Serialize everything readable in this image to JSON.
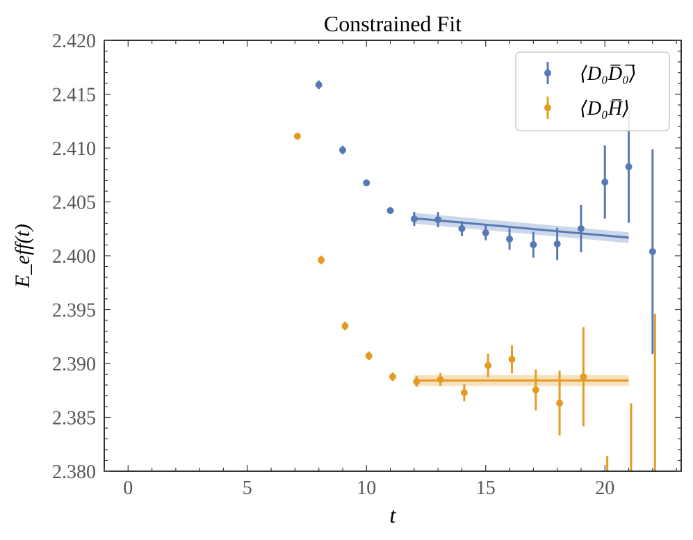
{
  "chart_data": {
    "type": "scatter",
    "title": "Constrained Fit",
    "xlabel": "t",
    "ylabel": "E_eff(t)",
    "xlim": [
      -1,
      23.2
    ],
    "ylim": [
      2.38,
      2.42
    ],
    "xticks": [
      0,
      5,
      10,
      15,
      20
    ],
    "yticks": [
      2.38,
      2.385,
      2.39,
      2.395,
      2.4,
      2.405,
      2.41,
      2.415,
      2.42
    ],
    "ytick_labels": [
      "2.380",
      "2.385",
      "2.390",
      "2.395",
      "2.400",
      "2.405",
      "2.410",
      "2.415",
      "2.420"
    ],
    "grid": false,
    "legend_position": "top-right",
    "series": [
      {
        "name": "⟨D₀D̅₀̅⟩",
        "color": "#5779b5",
        "x": [
          8,
          9,
          10,
          11,
          12,
          13,
          14,
          15,
          16,
          17,
          18,
          19,
          20,
          21,
          22
        ],
        "y": [
          2.41587,
          2.40981,
          2.40677,
          2.40419,
          2.40342,
          2.40335,
          2.40252,
          2.40213,
          2.40155,
          2.40103,
          2.4011,
          2.40252,
          2.40684,
          2.40826,
          2.40039
        ],
        "yerr": [
          0.0004,
          0.0004,
          0.0003,
          0.0003,
          0.00065,
          0.0007,
          0.0007,
          0.0007,
          0.001,
          0.0012,
          0.0015,
          0.0022,
          0.0034,
          0.0052,
          0.0095
        ],
        "fit": {
          "x": [
            12,
            21
          ],
          "y": [
            2.40348,
            2.40168
          ],
          "band": 0.0005
        }
      },
      {
        "name": "⟨D₀H̅⟩",
        "color": "#e49b23",
        "x": [
          7.1,
          8.1,
          9.1,
          10.1,
          11.1,
          12.1,
          13.1,
          14.1,
          15.1,
          16.1,
          17.1,
          18.1,
          19.1,
          20.1,
          21.1,
          22.1
        ],
        "y": [
          2.4111,
          2.39961,
          2.39348,
          2.39071,
          2.38877,
          2.38832,
          2.38852,
          2.38729,
          2.38981,
          2.39039,
          2.38755,
          2.38632,
          2.38877,
          2.378,
          2.378,
          2.378
        ],
        "yerr": [
          0.0003,
          0.0004,
          0.0004,
          0.0004,
          0.0004,
          0.0005,
          0.0006,
          0.0008,
          0.0011,
          0.0013,
          0.0019,
          0.003,
          0.0046,
          0.0034,
          0.0083,
          0.0166
        ],
        "fit": {
          "x": [
            12,
            21
          ],
          "y": [
            2.38842,
            2.38842
          ],
          "band": 0.0005
        }
      }
    ]
  }
}
